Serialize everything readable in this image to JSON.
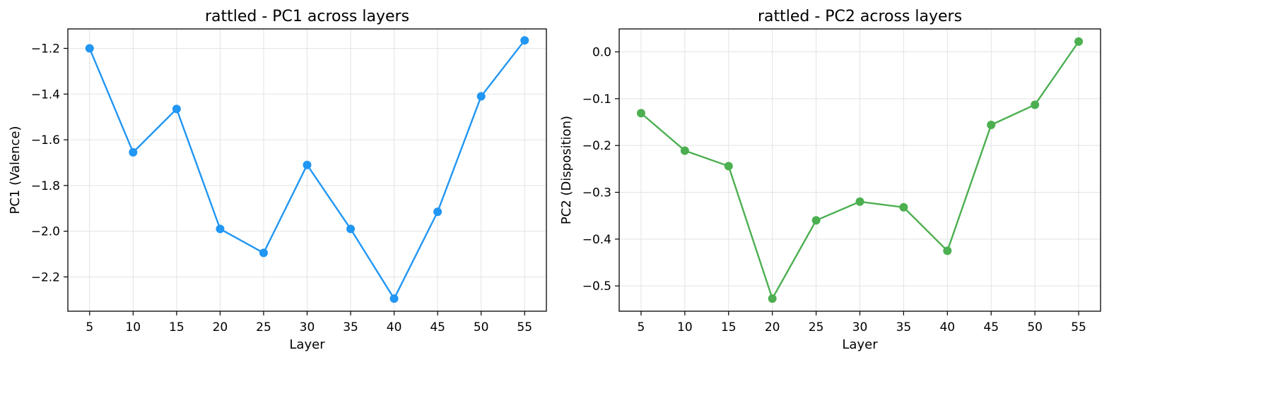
{
  "chart_data": [
    {
      "type": "line",
      "title": "rattled - PC1 across layers",
      "xlabel": "Layer",
      "ylabel": "PC1 (Valence)",
      "x": [
        5,
        10,
        15,
        20,
        25,
        30,
        35,
        40,
        45,
        50,
        55
      ],
      "series": [
        {
          "values": [
            -1.2,
            -1.655,
            -1.465,
            -1.99,
            -2.095,
            -1.71,
            -1.99,
            -2.295,
            -1.915,
            -1.41,
            -1.165
          ]
        }
      ],
      "color": "#2196f3",
      "xticks": [
        5,
        10,
        15,
        20,
        25,
        30,
        35,
        40,
        45,
        50,
        55
      ],
      "yticks": [
        -2.2,
        -2.0,
        -1.8,
        -1.6,
        -1.4,
        -1.2
      ],
      "ytick_labels": [
        "−2.2",
        "−2.0",
        "−1.8",
        "−1.6",
        "−1.4",
        "−1.2"
      ],
      "xlim": [
        2.5,
        57.5
      ],
      "ylim": [
        -2.35,
        -1.115
      ],
      "grid": true
    },
    {
      "type": "line",
      "title": "rattled - PC2 across layers",
      "xlabel": "Layer",
      "ylabel": "PC2 (Disposition)",
      "x": [
        5,
        10,
        15,
        20,
        25,
        30,
        35,
        40,
        45,
        50,
        55
      ],
      "series": [
        {
          "values": [
            -0.131,
            -0.211,
            -0.244,
            -0.527,
            -0.36,
            -0.32,
            -0.332,
            -0.425,
            -0.156,
            -0.113,
            0.022
          ]
        }
      ],
      "color": "#4caf50",
      "xticks": [
        5,
        10,
        15,
        20,
        25,
        30,
        35,
        40,
        45,
        50,
        55
      ],
      "yticks": [
        -0.5,
        -0.4,
        -0.3,
        -0.2,
        -0.1,
        0.0
      ],
      "ytick_labels": [
        "−0.5",
        "−0.4",
        "−0.3",
        "−0.2",
        "−0.1",
        "0.0"
      ],
      "xlim": [
        2.5,
        57.5
      ],
      "ylim": [
        -0.554,
        0.049
      ],
      "grid": true
    }
  ]
}
